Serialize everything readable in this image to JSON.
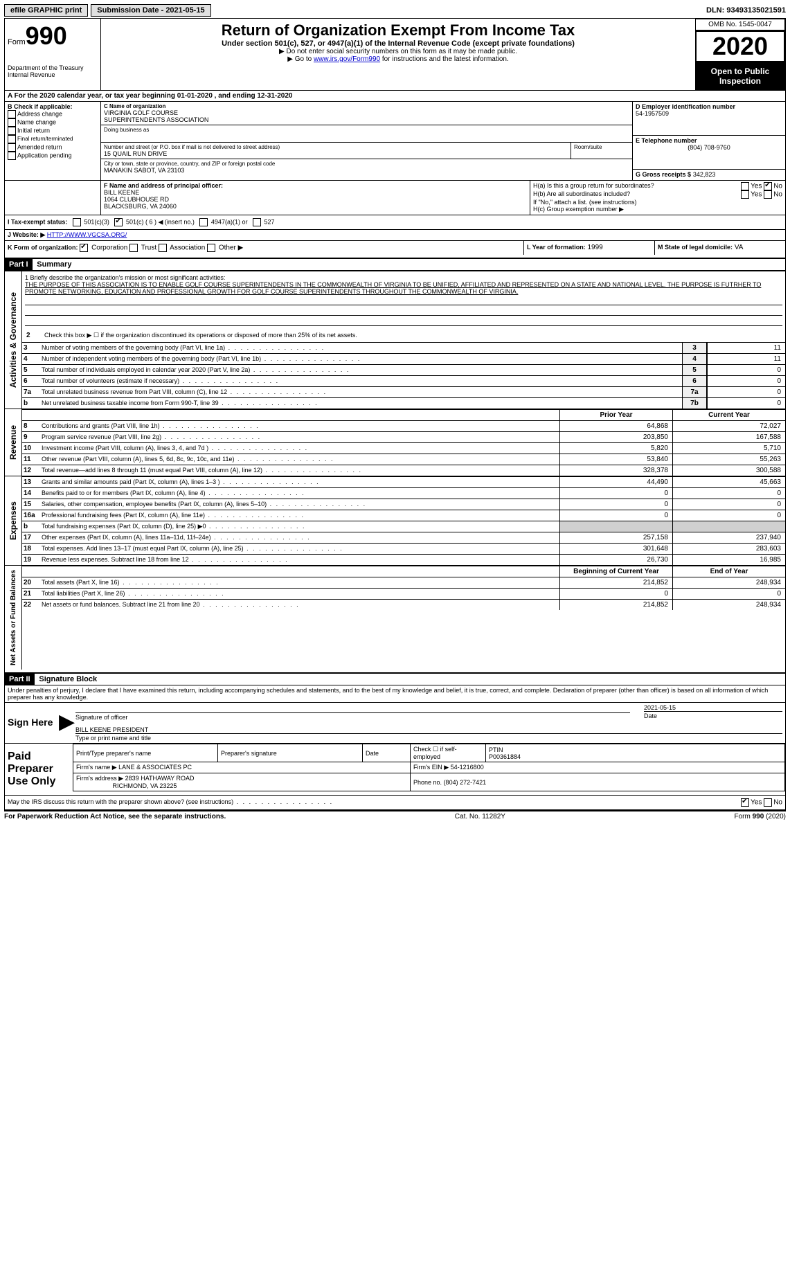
{
  "topbar": {
    "efile": "efile GRAPHIC print",
    "submission_label": "Submission Date - 2021-05-15",
    "dln_label": "DLN: 93493135021591"
  },
  "header": {
    "form_word": "Form",
    "form_num": "990",
    "dept1": "Department of the Treasury",
    "dept2": "Internal Revenue",
    "title": "Return of Organization Exempt From Income Tax",
    "subtitle": "Under section 501(c), 527, or 4947(a)(1) of the Internal Revenue Code (except private foundations)",
    "note1": "▶ Do not enter social security numbers on this form as it may be made public.",
    "note2_pre": "▶ Go to ",
    "note2_link": "www.irs.gov/Form990",
    "note2_post": " for instructions and the latest information.",
    "omb": "OMB No. 1545-0047",
    "year": "2020",
    "open": "Open to Public Inspection"
  },
  "periodA": "For the 2020 calendar year, or tax year beginning 01-01-2020   , and ending 12-31-2020",
  "sectionB": {
    "label": "B Check if applicable:",
    "addr": "Address change",
    "name": "Name change",
    "initial": "Initial return",
    "final": "Final return/terminated",
    "amended": "Amended return",
    "app": "Application pending"
  },
  "sectionC": {
    "name_label": "C Name of organization",
    "name1": "VIRGINIA GOLF COURSE",
    "name2": "SUPERINTENDENTS ASSOCIATION",
    "dba_label": "Doing business as",
    "street_label": "Number and street (or P.O. box if mail is not delivered to street address)",
    "street": "15 QUAIL RUN DRIVE",
    "room_label": "Room/suite",
    "city_label": "City or town, state or province, country, and ZIP or foreign postal code",
    "city": "MANAKIN SABOT, VA  23103"
  },
  "sectionD": {
    "label": "D Employer identification number",
    "val": "54-1957509"
  },
  "sectionE": {
    "label": "E Telephone number",
    "val": "(804) 708-9760"
  },
  "sectionG": {
    "label": "G Gross receipts $",
    "val": "342,823"
  },
  "sectionF": {
    "label": "F  Name and address of principal officer:",
    "name": "BILL KEENE",
    "addr1": "1064 CLUBHOUSE RD",
    "addr2": "BLACKSBURG, VA  24060"
  },
  "sectionH": {
    "a": "H(a)  Is this a group return for subordinates?",
    "b": "H(b)  Are all subordinates included?",
    "bnote": "If \"No,\" attach a list. (see instructions)",
    "c": "H(c)  Group exemption number ▶",
    "yes": "Yes",
    "no": "No"
  },
  "sectionI": {
    "label": "I   Tax-exempt status:",
    "o1": "501(c)(3)",
    "o2": "501(c) ( 6 ) ◀ (insert no.)",
    "o3": "4947(a)(1) or",
    "o4": "527"
  },
  "sectionJ": {
    "label": "J   Website: ▶",
    "val": "HTTP://WWW.VGCSA.ORG/"
  },
  "sectionK": {
    "label": "K Form of organization:",
    "corp": "Corporation",
    "trust": "Trust",
    "assoc": "Association",
    "other": "Other ▶"
  },
  "sectionL": {
    "label": "L Year of formation:",
    "val": "1999"
  },
  "sectionM": {
    "label": "M State of legal domicile:",
    "val": "VA"
  },
  "part1": {
    "badge": "Part I",
    "title": "Summary"
  },
  "summary": {
    "q1_label": "1  Briefly describe the organization's mission or most significant activities:",
    "q1_text": "THE PURPOSE OF THIS ASSOCIATION IS TO ENABLE GOLF COURSE SUPERINTENDENTS IN THE COMMONWEALTH OF VIRGINIA TO BE UNIFIED, AFFILIATED AND REPRESENTED ON A STATE AND NATIONAL LEVEL. THE PURPOSE IS FUTRHER TO PROMOTE NETWORKING, EDUCATION AND PROFESSIONAL GROWTH FOR GOLF COURSE SUPERINTENDENTS THROUGHOUT THE COMMONWEALTH OF VIRGINIA.",
    "q2": "Check this box ▶ ☐  if the organization discontinued its operations or disposed of more than 25% of its net assets.",
    "lines": [
      {
        "n": "3",
        "t": "Number of voting members of the governing body (Part VI, line 1a)",
        "box": "3",
        "v": "11"
      },
      {
        "n": "4",
        "t": "Number of independent voting members of the governing body (Part VI, line 1b)",
        "box": "4",
        "v": "11"
      },
      {
        "n": "5",
        "t": "Total number of individuals employed in calendar year 2020 (Part V, line 2a)",
        "box": "5",
        "v": "0"
      },
      {
        "n": "6",
        "t": "Total number of volunteers (estimate if necessary)",
        "box": "6",
        "v": "0"
      },
      {
        "n": "7a",
        "t": "Total unrelated business revenue from Part VIII, column (C), line 12",
        "box": "7a",
        "v": "0"
      },
      {
        "n": "b",
        "t": "Net unrelated business taxable income from Form 990-T, line 39",
        "box": "7b",
        "v": "0"
      }
    ],
    "col_prior": "Prior Year",
    "col_curr": "Current Year",
    "revenue": [
      {
        "n": "8",
        "t": "Contributions and grants (Part VIII, line 1h)",
        "p": "64,868",
        "c": "72,027"
      },
      {
        "n": "9",
        "t": "Program service revenue (Part VIII, line 2g)",
        "p": "203,850",
        "c": "167,588"
      },
      {
        "n": "10",
        "t": "Investment income (Part VIII, column (A), lines 3, 4, and 7d )",
        "p": "5,820",
        "c": "5,710"
      },
      {
        "n": "11",
        "t": "Other revenue (Part VIII, column (A), lines 5, 6d, 8c, 9c, 10c, and 11e)",
        "p": "53,840",
        "c": "55,263"
      },
      {
        "n": "12",
        "t": "Total revenue—add lines 8 through 11 (must equal Part VIII, column (A), line 12)",
        "p": "328,378",
        "c": "300,588"
      }
    ],
    "expenses": [
      {
        "n": "13",
        "t": "Grants and similar amounts paid (Part IX, column (A), lines 1–3 )",
        "p": "44,490",
        "c": "45,663"
      },
      {
        "n": "14",
        "t": "Benefits paid to or for members (Part IX, column (A), line 4)",
        "p": "0",
        "c": "0"
      },
      {
        "n": "15",
        "t": "Salaries, other compensation, employee benefits (Part IX, column (A), lines 5–10)",
        "p": "0",
        "c": "0"
      },
      {
        "n": "16a",
        "t": "Professional fundraising fees (Part IX, column (A), line 11e)",
        "p": "0",
        "c": "0"
      },
      {
        "n": "b",
        "t": "Total fundraising expenses (Part IX, column (D), line 25) ▶0",
        "p": "",
        "c": "",
        "shaded": true
      },
      {
        "n": "17",
        "t": "Other expenses (Part IX, column (A), lines 11a–11d, 11f–24e)",
        "p": "257,158",
        "c": "237,940"
      },
      {
        "n": "18",
        "t": "Total expenses. Add lines 13–17 (must equal Part IX, column (A), line 25)",
        "p": "301,648",
        "c": "283,603"
      },
      {
        "n": "19",
        "t": "Revenue less expenses. Subtract line 18 from line 12",
        "p": "26,730",
        "c": "16,985"
      }
    ],
    "col_begin": "Beginning of Current Year",
    "col_end": "End of Year",
    "balances": [
      {
        "n": "20",
        "t": "Total assets (Part X, line 16)",
        "p": "214,852",
        "c": "248,934"
      },
      {
        "n": "21",
        "t": "Total liabilities (Part X, line 26)",
        "p": "0",
        "c": "0"
      },
      {
        "n": "22",
        "t": "Net assets or fund balances. Subtract line 21 from line 20",
        "p": "214,852",
        "c": "248,934"
      }
    ],
    "side_gov": "Activities & Governance",
    "side_rev": "Revenue",
    "side_exp": "Expenses",
    "side_bal": "Net Assets or Fund Balances"
  },
  "part2": {
    "badge": "Part II",
    "title": "Signature Block"
  },
  "sig": {
    "perjury": "Under penalties of perjury, I declare that I have examined this return, including accompanying schedules and statements, and to the best of my knowledge and belief, it is true, correct, and complete. Declaration of preparer (other than officer) is based on all information of which preparer has any knowledge.",
    "sign_here": "Sign Here",
    "date": "2021-05-15",
    "sig_officer": "Signature of officer",
    "date_lbl": "Date",
    "name_title": "BILL KEENE  PRESIDENT",
    "type_name": "Type or print name and title"
  },
  "paid": {
    "label": "Paid Preparer Use Only",
    "h_print": "Print/Type preparer's name",
    "h_sig": "Preparer's signature",
    "h_date": "Date",
    "h_check": "Check ☐ if self-employed",
    "h_ptin": "PTIN",
    "ptin": "P00361884",
    "firm_name_lbl": "Firm's name   ▶",
    "firm_name": "LANE & ASSOCIATES PC",
    "firm_ein_lbl": "Firm's EIN ▶",
    "firm_ein": "54-1216800",
    "firm_addr_lbl": "Firm's address ▶",
    "firm_addr1": "2839 HATHAWAY ROAD",
    "firm_addr2": "RICHMOND, VA  23225",
    "phone_lbl": "Phone no.",
    "phone": "(804) 272-7421"
  },
  "discuss": {
    "text": "May the IRS discuss this return with the preparer shown above? (see instructions)",
    "yes": "Yes",
    "no": "No"
  },
  "footer": {
    "left": "For Paperwork Reduction Act Notice, see the separate instructions.",
    "mid": "Cat. No. 11282Y",
    "right_pre": "Form ",
    "right_bold": "990",
    "right_post": " (2020)"
  }
}
